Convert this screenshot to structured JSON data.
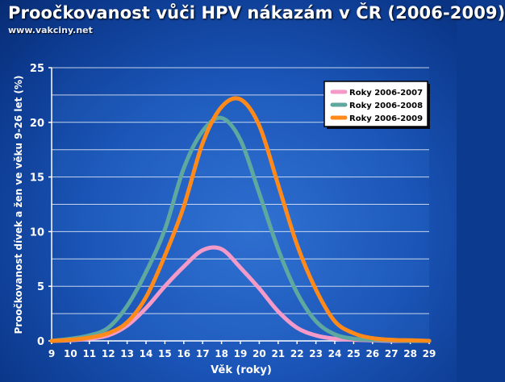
{
  "header": {
    "title": "Proočkovanost vůči HPV nákazám v ČR (2006-2009)",
    "source": "www.vakciny.net"
  },
  "colors": {
    "grid": "#ffffff",
    "plot_band": "#3a7fe0",
    "axis": "#ffffff"
  },
  "chart_data": {
    "type": "line",
    "xlabel": "Věk (roky)",
    "ylabel": "Proočkovanost dívek a žen ve věku 9-26 let (%)",
    "x": [
      9,
      10,
      11,
      12,
      13,
      14,
      15,
      16,
      17,
      18,
      19,
      20,
      21,
      22,
      23,
      24,
      25,
      26,
      27,
      28,
      29
    ],
    "xlim": [
      9,
      29
    ],
    "ylim": [
      0,
      25
    ],
    "yticks": [
      0,
      5,
      10,
      15,
      20,
      25
    ],
    "grid": true,
    "legend_position": "top-right",
    "series": [
      {
        "name": "Roky 2006-2007",
        "color": "#f49ac8",
        "values": [
          0,
          0.05,
          0.2,
          0.5,
          1.4,
          3.0,
          5.0,
          6.8,
          8.3,
          8.4,
          6.7,
          4.8,
          2.7,
          1.2,
          0.5,
          0.2,
          0.1,
          0.05,
          0,
          0,
          0
        ]
      },
      {
        "name": "Roky 2006-2008",
        "color": "#5fa8a0",
        "values": [
          0,
          0.2,
          0.5,
          1.2,
          3.2,
          6.3,
          10.2,
          15.8,
          19.2,
          20.4,
          18.4,
          13.5,
          8.4,
          4.4,
          1.8,
          0.6,
          0.2,
          0.1,
          0.05,
          0,
          0
        ]
      },
      {
        "name": "Roky 2006-2009",
        "color": "#ff8a1a",
        "values": [
          0,
          0.1,
          0.3,
          0.7,
          1.7,
          4.0,
          7.8,
          12.3,
          18.1,
          21.4,
          22.1,
          19.7,
          14.3,
          8.8,
          4.7,
          1.8,
          0.7,
          0.25,
          0.1,
          0.05,
          0
        ]
      }
    ]
  }
}
